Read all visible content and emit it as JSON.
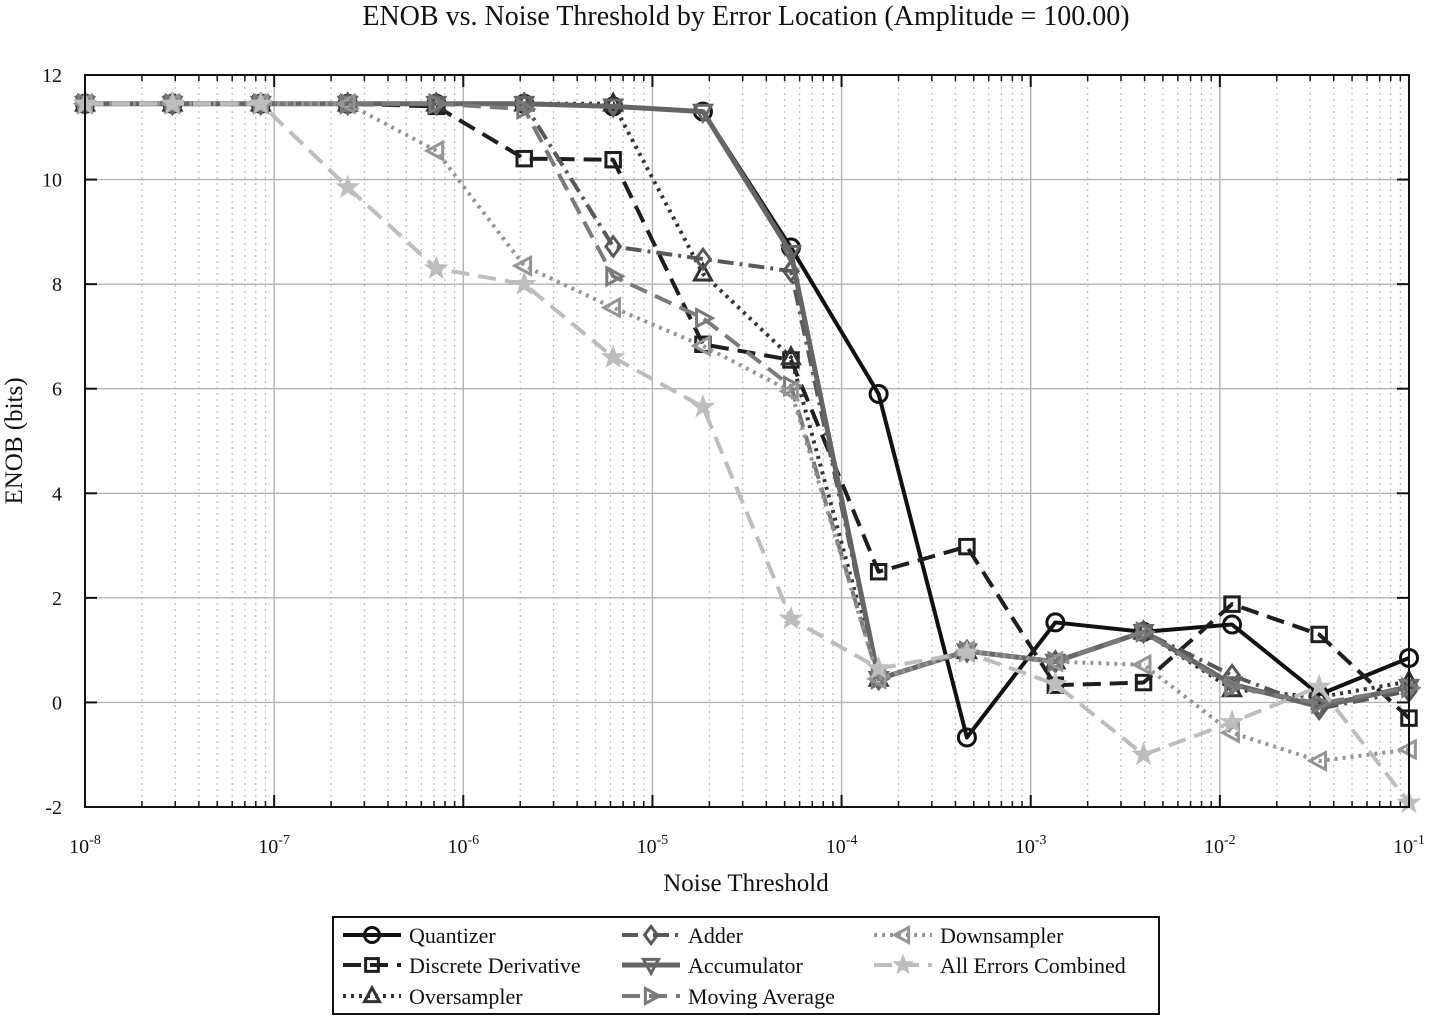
{
  "chart_data": {
    "type": "line",
    "title": "ENOB vs. Noise Threshold by Error Location (Amplitude = 100.00)",
    "xlabel": "Noise Threshold",
    "ylabel": "ENOB (bits)",
    "x_scale": "log",
    "xlim": [
      1e-08,
      0.1
    ],
    "ylim": [
      -2,
      12
    ],
    "grid": true,
    "legend_position": "bottom",
    "x_ticks": [
      {
        "value": 1e-08,
        "base": "10",
        "exp": "-8"
      },
      {
        "value": 1e-07,
        "base": "10",
        "exp": "-7"
      },
      {
        "value": 1e-06,
        "base": "10",
        "exp": "-6"
      },
      {
        "value": 1e-05,
        "base": "10",
        "exp": "-5"
      },
      {
        "value": 0.0001,
        "base": "10",
        "exp": "-4"
      },
      {
        "value": 0.001,
        "base": "10",
        "exp": "-3"
      },
      {
        "value": 0.01,
        "base": "10",
        "exp": "-2"
      },
      {
        "value": 0.1,
        "base": "10",
        "exp": "-1"
      }
    ],
    "y_ticks": [
      {
        "value": -2,
        "label": "-2"
      },
      {
        "value": 0,
        "label": "0"
      },
      {
        "value": 2,
        "label": "2"
      },
      {
        "value": 4,
        "label": "4"
      },
      {
        "value": 6,
        "label": "6"
      },
      {
        "value": 8,
        "label": "8"
      },
      {
        "value": 10,
        "label": "10"
      },
      {
        "value": 12,
        "label": "12"
      }
    ],
    "x": [
      1e-08,
      2.9e-08,
      8.5e-08,
      2.45e-07,
      7.2e-07,
      2.1e-06,
      6.2e-06,
      1.85e-05,
      5.4e-05,
      0.000157,
      0.00046,
      0.00135,
      0.00395,
      0.0116,
      0.0335,
      0.1
    ],
    "series": [
      {
        "name": "Quantizer",
        "color": "#111111",
        "dash": "solid",
        "width": 4,
        "marker": "circle",
        "values": [
          11.45,
          11.45,
          11.45,
          11.45,
          11.45,
          11.45,
          11.4,
          11.3,
          8.7,
          5.9,
          -0.67,
          1.53,
          1.35,
          1.49,
          0.15,
          0.85
        ]
      },
      {
        "name": "Discrete Derivative",
        "color": "#1e1e1e",
        "dash": "long-dash",
        "width": 4,
        "marker": "square",
        "values": [
          11.45,
          11.45,
          11.45,
          11.45,
          11.4,
          10.4,
          10.38,
          6.85,
          6.55,
          2.5,
          2.98,
          0.33,
          0.38,
          1.88,
          1.3,
          -0.3
        ]
      },
      {
        "name": "Oversampler",
        "color": "#333333",
        "dash": "dotted",
        "width": 4,
        "marker": "triangle-up",
        "values": [
          11.45,
          11.45,
          11.45,
          11.45,
          11.45,
          11.45,
          11.45,
          8.2,
          6.6,
          0.45,
          0.98,
          0.78,
          1.35,
          0.25,
          0.1,
          0.4
        ]
      },
      {
        "name": "Adder",
        "color": "#585858",
        "dash": "dash-dot",
        "width": 4,
        "marker": "diamond",
        "values": [
          11.45,
          11.45,
          11.45,
          11.45,
          11.45,
          11.45,
          8.72,
          8.48,
          8.25,
          0.45,
          0.98,
          0.78,
          1.35,
          0.52,
          -0.12,
          0.22
        ]
      },
      {
        "name": "Accumulator",
        "color": "#656565",
        "dash": "solid",
        "width": 5,
        "marker": "triangle-down",
        "values": [
          11.45,
          11.45,
          11.45,
          11.45,
          11.45,
          11.45,
          11.4,
          11.3,
          8.6,
          0.45,
          0.98,
          0.78,
          1.35,
          0.35,
          -0.08,
          0.3
        ]
      },
      {
        "name": "Moving Average",
        "color": "#7a7a7a",
        "dash": "long-dash",
        "width": 4,
        "marker": "triangle-right",
        "values": [
          11.45,
          11.45,
          11.45,
          11.45,
          11.45,
          11.35,
          8.15,
          7.35,
          6.05,
          0.45,
          0.98,
          0.78,
          1.35,
          0.3,
          -0.02,
          0.28
        ]
      },
      {
        "name": "Downsampler",
        "color": "#959595",
        "dash": "dotted",
        "width": 4,
        "marker": "triangle-left",
        "values": [
          11.45,
          11.45,
          11.45,
          11.45,
          10.55,
          8.35,
          7.55,
          6.82,
          5.95,
          0.45,
          0.98,
          0.78,
          0.72,
          -0.58,
          -1.12,
          -0.9
        ]
      },
      {
        "name": "All Errors Combined",
        "color": "#bdbdbd",
        "dash": "long-dash",
        "width": 4,
        "marker": "star",
        "values": [
          11.45,
          11.45,
          11.45,
          9.85,
          8.3,
          8.0,
          6.6,
          5.65,
          1.6,
          0.65,
          0.95,
          0.35,
          -1.0,
          -0.38,
          0.3,
          -1.92
        ]
      }
    ]
  }
}
